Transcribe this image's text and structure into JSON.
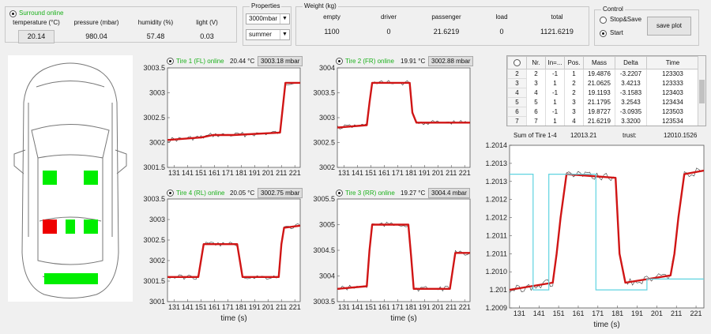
{
  "surround": {
    "status": "Surround online",
    "headers": [
      "temperature (°C)",
      "pressure (mbar)",
      "humidity (%)",
      "light (V)"
    ],
    "values": [
      "20.14",
      "980.04",
      "57.48",
      "0.03"
    ]
  },
  "properties": {
    "title": "Properties",
    "pressure_select": "3000mbar",
    "season_select": "summer"
  },
  "weight": {
    "title": "Weight (kg)",
    "headers": [
      "empty",
      "driver",
      "passenger",
      "load",
      "total"
    ],
    "values": [
      "1100",
      "0",
      "21.6219",
      "0",
      "1121.6219"
    ]
  },
  "control": {
    "title": "Control",
    "opt1": "Stop&Save",
    "opt2": "Start",
    "save_label": "save plot"
  },
  "tires": [
    {
      "status": "Tire 1 (FL) online",
      "temp": "20.44 °C",
      "pressure": "3003.18 mbar"
    },
    {
      "status": "Tire 2 (FR) online",
      "temp": "19.91 °C",
      "pressure": "3002.88 mbar"
    },
    {
      "status": "Tire 4 (RL) online",
      "temp": "20.05 °C",
      "pressure": "3002.75 mbar"
    },
    {
      "status": "Tire 3 (RR) online",
      "temp": "19.27 °C",
      "pressure": "3004.4 mbar"
    }
  ],
  "table": {
    "headers": [
      "Nr.",
      "In=...",
      "Pos.",
      "Mass",
      "Delta",
      "Time"
    ],
    "rows": [
      [
        "2",
        "2",
        "-1",
        "1",
        "19.4876",
        "-3.2207",
        "123303"
      ],
      [
        "3",
        "3",
        "1",
        "2",
        "21.0625",
        "3.4213",
        "123333"
      ],
      [
        "4",
        "4",
        "-1",
        "2",
        "19.1193",
        "-3.1583",
        "123403"
      ],
      [
        "5",
        "5",
        "1",
        "3",
        "21.1795",
        "3.2543",
        "123434"
      ],
      [
        "6",
        "6",
        "-1",
        "3",
        "19.8727",
        "-3.0935",
        "123503"
      ],
      [
        "7",
        "7",
        "1",
        "4",
        "21.6219",
        "3.3200",
        "123534"
      ]
    ]
  },
  "sum": {
    "label": "Sum of Tire 1-4",
    "value": "12013.21",
    "trust_label": "trust:",
    "trust_value": "12010.1526"
  },
  "colors": {
    "status_green": "#1ab01a",
    "fit_line": "#d01515",
    "raw_line": "#333333",
    "step_line": "#5fd3e0",
    "seat_on": "#00ee00",
    "seat_alert": "#ee0000"
  },
  "chart_data": [
    {
      "type": "line",
      "xlabel": "",
      "x_ticks": [
        "131",
        "141",
        "151",
        "161",
        "171",
        "181",
        "191",
        "201",
        "211",
        "221"
      ],
      "y_ticks": [
        "3001.5",
        "3002",
        "3002.5",
        "3003",
        "3003.5"
      ],
      "ylim": [
        3001.5,
        3003.5
      ],
      "xlim": [
        126,
        225
      ],
      "series": [
        {
          "x": [
            126,
            150,
            151,
            160,
            175,
            210,
            212,
            214,
            225
          ],
          "values": [
            3002.05,
            3002.1,
            3002.1,
            3002.15,
            3002.15,
            3002.2,
            3002.7,
            3003.2,
            3003.2
          ]
        }
      ]
    },
    {
      "type": "line",
      "xlabel": "",
      "x_ticks": [
        "131",
        "141",
        "151",
        "161",
        "171",
        "181",
        "191",
        "201",
        "211",
        "221"
      ],
      "y_ticks": [
        "3002",
        "3002.5",
        "3003",
        "3003.5",
        "3004"
      ],
      "ylim": [
        3002,
        3004
      ],
      "xlim": [
        126,
        225
      ],
      "series": [
        {
          "x": [
            126,
            148,
            150,
            152,
            180,
            182,
            185,
            225
          ],
          "values": [
            3002.8,
            3002.85,
            3003.3,
            3003.7,
            3003.7,
            3003.1,
            3002.9,
            3002.9
          ]
        }
      ]
    },
    {
      "type": "line",
      "xlabel": "time (s)",
      "x_ticks": [
        "131",
        "141",
        "151",
        "161",
        "171",
        "181",
        "191",
        "201",
        "211",
        "221"
      ],
      "y_ticks": [
        "3001",
        "3001.5",
        "3002",
        "3002.5",
        "3003",
        "3003.5"
      ],
      "ylim": [
        3001,
        3003.5
      ],
      "xlim": [
        126,
        225
      ],
      "series": [
        {
          "x": [
            126,
            149,
            151,
            153,
            178,
            180,
            182,
            209,
            211,
            213,
            225
          ],
          "values": [
            3001.6,
            3001.6,
            3002.0,
            3002.4,
            3002.4,
            3002.0,
            3001.6,
            3001.6,
            3002.4,
            3002.8,
            3002.85
          ]
        }
      ]
    },
    {
      "type": "line",
      "xlabel": "time (s)",
      "x_ticks": [
        "131",
        "141",
        "151",
        "161",
        "171",
        "181",
        "191",
        "201",
        "211",
        "221"
      ],
      "y_ticks": [
        "3003.5",
        "3004",
        "3004.5",
        "3005",
        "3005.5"
      ],
      "ylim": [
        3003.5,
        3005.5
      ],
      "xlim": [
        126,
        225
      ],
      "series": [
        {
          "x": [
            126,
            148,
            150,
            152,
            179,
            181,
            183,
            210,
            212,
            214,
            225
          ],
          "values": [
            3003.75,
            3003.8,
            3004.5,
            3005.0,
            3005.0,
            3004.4,
            3003.75,
            3003.75,
            3004.1,
            3004.45,
            3004.45
          ]
        }
      ]
    },
    {
      "type": "line",
      "xlabel": "time (s)",
      "x_ticks": [
        "131",
        "141",
        "151",
        "161",
        "171",
        "181",
        "191",
        "201",
        "211",
        "221"
      ],
      "y_ticks": [
        "1.2009",
        "1.201",
        "1.2010",
        "1.2011",
        "1.2011",
        "1.2012",
        "1.2012",
        "1.2013",
        "1.2013",
        "1.2014"
      ],
      "y_tick_values": [
        1.20095,
        1.201,
        1.20105,
        1.2011,
        1.20115,
        1.2012,
        1.20125,
        1.2013,
        1.20135,
        1.2014
      ],
      "ylim": [
        1.20095,
        1.2014
      ],
      "xlim": [
        126,
        225
      ],
      "series": [
        {
          "x": [
            126,
            148,
            150,
            152,
            155,
            180,
            182,
            185,
            208,
            210,
            212,
            215,
            225
          ],
          "values": [
            1.201,
            1.20102,
            1.2011,
            1.2012,
            1.20132,
            1.20131,
            1.2011,
            1.20102,
            1.20104,
            1.2011,
            1.2012,
            1.20132,
            1.20133
          ]
        },
        {
          "x": [
            126,
            138,
            138,
            146,
            146,
            170,
            170,
            196,
            196,
            225
          ],
          "values": [
            1.20132,
            1.20132,
            1.201,
            1.201,
            1.20132,
            1.20132,
            1.201,
            1.201,
            1.20103,
            1.20103
          ]
        }
      ]
    }
  ]
}
